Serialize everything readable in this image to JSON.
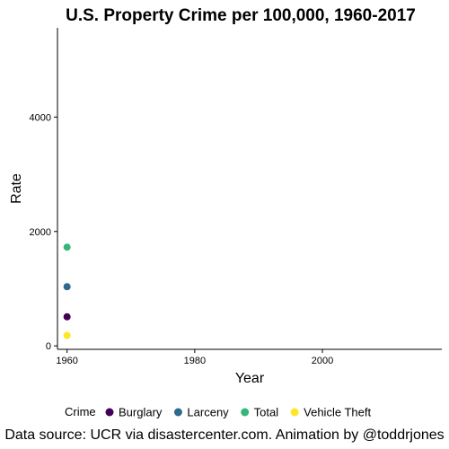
{
  "chart_data": {
    "type": "scatter",
    "title": "U.S. Property Crime per 100,000, 1960-2017",
    "xlabel": "Year",
    "ylabel": "Rate",
    "xlim": [
      1958.5,
      2018.7
    ],
    "ylim": [
      -60,
      5560
    ],
    "x_ticks": [
      1960,
      1980,
      2000
    ],
    "y_ticks": [
      0,
      2000,
      4000
    ],
    "grid": false,
    "legend_title": "Crime",
    "legend_position": "bottom",
    "series": [
      {
        "name": "Burglary",
        "color": "#440154",
        "points": [
          {
            "x": 1960,
            "y": 509
          }
        ]
      },
      {
        "name": "Larceny",
        "color": "#31688E",
        "points": [
          {
            "x": 1960,
            "y": 1035
          }
        ]
      },
      {
        "name": "Total",
        "color": "#35B779",
        "points": [
          {
            "x": 1960,
            "y": 1726
          }
        ]
      },
      {
        "name": "Vehicle Theft",
        "color": "#FDE725",
        "points": [
          {
            "x": 1960,
            "y": 183
          }
        ]
      }
    ],
    "caption": "Data source: UCR via disastercenter.com. Animation by @toddrjones"
  }
}
